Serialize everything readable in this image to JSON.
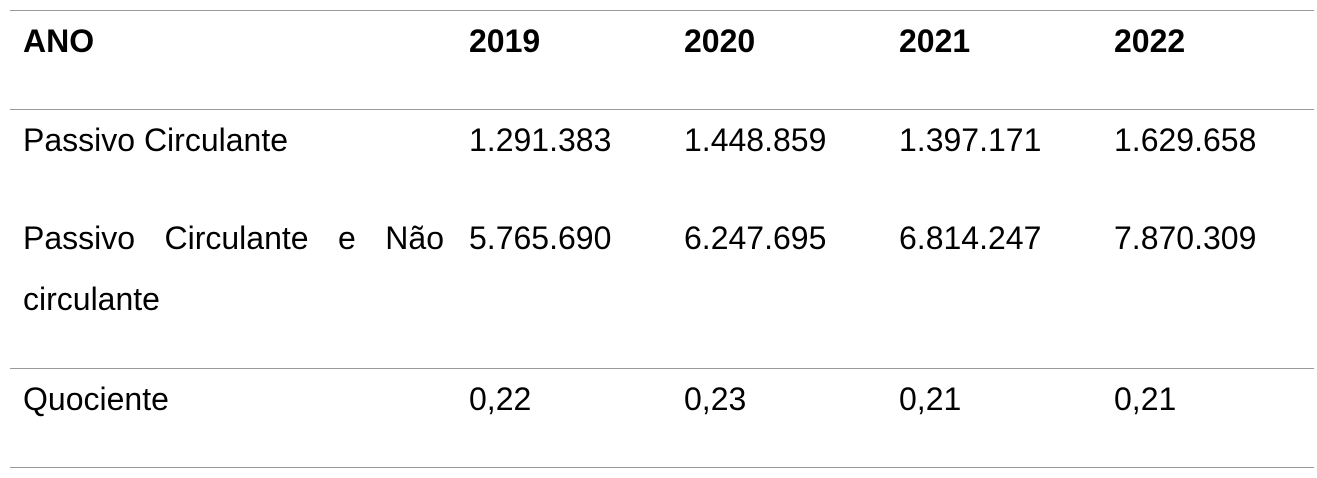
{
  "table": {
    "header": {
      "label": "ANO",
      "years": [
        "2019",
        "2020",
        "2021",
        "2022"
      ]
    },
    "rows": [
      {
        "label": "Passivo Circulante",
        "values": [
          "1.291.383",
          "1.448.859",
          "1.397.171",
          "1.629.658"
        ]
      },
      {
        "label": "Passivo Circulante e Não circulante",
        "values": [
          "5.765.690",
          "6.247.695",
          "6.814.247",
          "7.870.309"
        ]
      },
      {
        "label": "Quociente",
        "values": [
          "0,22",
          "0,23",
          "0,21",
          "0,21"
        ]
      }
    ]
  }
}
